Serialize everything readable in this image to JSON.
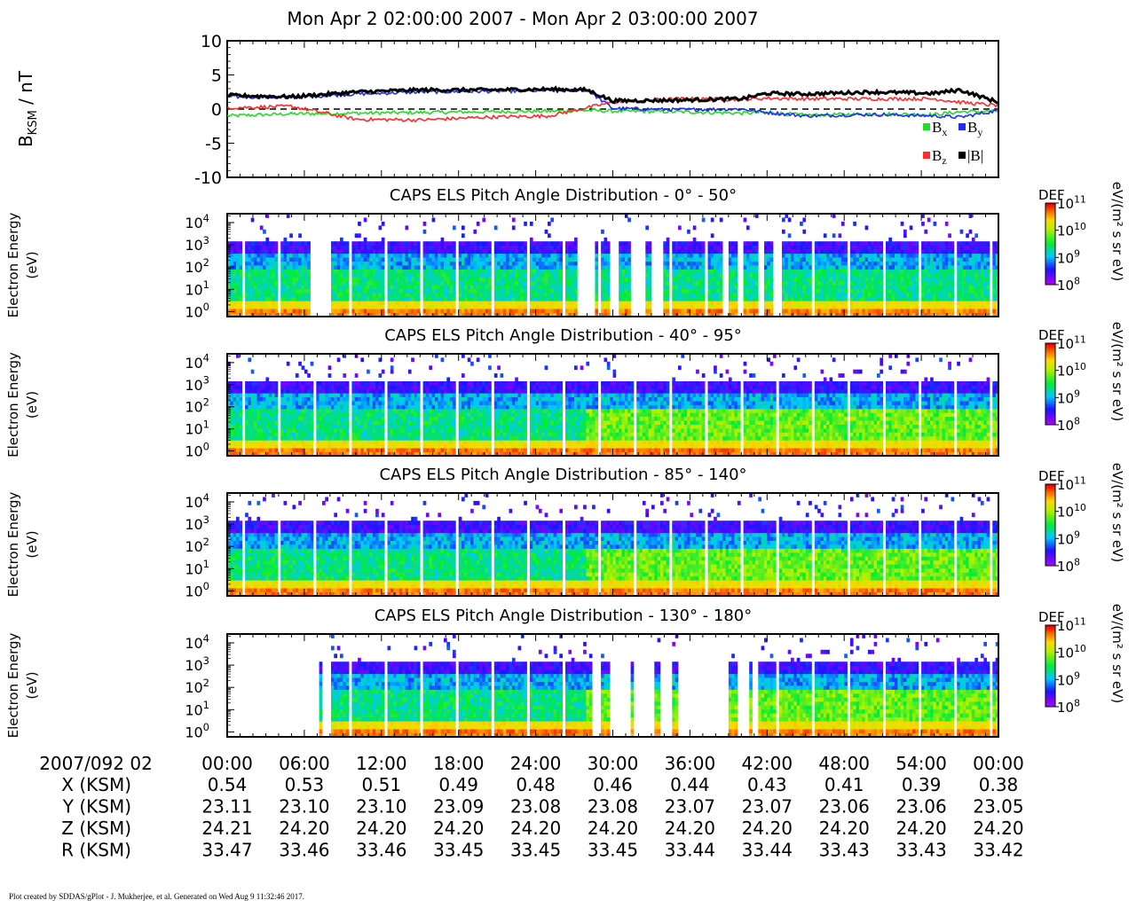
{
  "page": {
    "title": "Mon Apr 2 02:00:00 2007 - Mon Apr 2 03:00:00 2007",
    "footer": "Plot created by SDDAS/gPlot - J. Mukherjee, et al.  Generated on Wed Aug 9 11:32:46 2017."
  },
  "chart_data": [
    {
      "type": "line",
      "ylabel_main": "B",
      "ylabel_sub": "KSM",
      "ylabel_unit": " / nT",
      "ylim": [
        -10,
        10
      ],
      "yticks": [
        "10",
        "5",
        "0",
        "-5",
        "-10"
      ],
      "ytick_values": [
        10,
        5,
        0,
        -5,
        -10
      ],
      "x": [
        0,
        5,
        10,
        15,
        20,
        25,
        28,
        30,
        35,
        40,
        42,
        45,
        50,
        55,
        57,
        60
      ],
      "zero_line": "dashed",
      "legend_position": "bottom-right",
      "series": [
        {
          "name": "B",
          "sub": "x",
          "color": "#22dd22",
          "values": [
            -1.0,
            -0.7,
            -0.6,
            -0.5,
            -0.4,
            -0.3,
            -0.2,
            -0.3,
            -0.4,
            -0.6,
            -0.5,
            -0.9,
            -0.7,
            -0.8,
            -0.4,
            -0.3
          ]
        },
        {
          "name": "B",
          "sub": "y",
          "color": "#1f2cff",
          "values": [
            1.8,
            1.7,
            2.2,
            2.5,
            2.6,
            2.7,
            2.8,
            0.1,
            -0.1,
            0.0,
            -0.5,
            -1.0,
            -0.8,
            -1.0,
            -1.2,
            -0.2
          ]
        },
        {
          "name": "B",
          "sub": "z",
          "color": "#ff2a2a",
          "values": [
            0.2,
            0.4,
            -1.5,
            -1.6,
            -1.2,
            -1.0,
            0.2,
            1.0,
            1.5,
            1.4,
            1.6,
            1.5,
            1.5,
            1.5,
            1.0,
            0.5
          ]
        },
        {
          "name": "|B|",
          "sub": "",
          "color": "#000000",
          "values": [
            2.0,
            1.8,
            2.5,
            2.8,
            2.8,
            2.9,
            2.8,
            1.2,
            1.3,
            1.5,
            2.3,
            2.2,
            2.5,
            2.3,
            2.8,
            1.0
          ]
        }
      ]
    },
    {
      "type": "heatmap",
      "title": "CAPS ELS Pitch Angle Distribution - 0° - 50°",
      "ylabel": [
        "Electron Energy",
        "(eV)"
      ],
      "yscale": "log",
      "ylim": [
        0.6,
        25000
      ],
      "yticks_exp": [
        "0",
        "1",
        "2",
        "3",
        "4"
      ],
      "ytick_base": "10",
      "colorscale": "rainbow",
      "colorbar_label": "DEF",
      "colorbar_unit": "eV/(m² s sr eV)",
      "clim_exp": [
        "8",
        "9",
        "10",
        "11"
      ],
      "data_gaps_minutes": [
        [
          6.4,
          8.0
        ],
        [
          27.3,
          28.6
        ],
        [
          29.8,
          30.5
        ],
        [
          31.3,
          32.5
        ],
        [
          32.9,
          34.0
        ],
        [
          38.5,
          39.0
        ],
        [
          39.6,
          40.2
        ],
        [
          41.4,
          41.7
        ],
        [
          42.5,
          43.2
        ]
      ]
    },
    {
      "type": "heatmap",
      "title": "CAPS ELS Pitch Angle Distribution - 40° - 95°",
      "ylabel": [
        "Electron Energy",
        "(eV)"
      ],
      "yscale": "log",
      "ylim": [
        0.6,
        25000
      ],
      "yticks_exp": [
        "0",
        "1",
        "2",
        "3",
        "4"
      ],
      "ytick_base": "10",
      "colorscale": "rainbow",
      "colorbar_label": "DEF",
      "colorbar_unit": "eV/(m² s sr eV)",
      "clim_exp": [
        "8",
        "9",
        "10",
        "11"
      ],
      "data_gaps_minutes": []
    },
    {
      "type": "heatmap",
      "title": "CAPS ELS Pitch Angle Distribution - 85° - 140°",
      "ylabel": [
        "Electron Energy",
        "(eV)"
      ],
      "yscale": "log",
      "ylim": [
        0.6,
        25000
      ],
      "yticks_exp": [
        "0",
        "1",
        "2",
        "3",
        "4"
      ],
      "ytick_base": "10",
      "colorscale": "rainbow",
      "colorbar_label": "DEF",
      "colorbar_unit": "eV/(m² s sr eV)",
      "clim_exp": [
        "8",
        "9",
        "10",
        "11"
      ],
      "data_gaps_minutes": []
    },
    {
      "type": "heatmap",
      "title": "CAPS ELS Pitch Angle Distribution - 130° - 180°",
      "ylabel": [
        "Electron Energy",
        "(eV)"
      ],
      "yscale": "log",
      "ylim": [
        0.6,
        25000
      ],
      "yticks_exp": [
        "0",
        "1",
        "2",
        "3",
        "4"
      ],
      "ytick_base": "10",
      "colorscale": "rainbow",
      "colorbar_label": "DEF",
      "colorbar_unit": "eV/(m² s sr eV)",
      "clim_exp": [
        "8",
        "9",
        "10",
        "11"
      ],
      "data_gaps_minutes": [
        [
          0,
          7.2
        ],
        [
          7.4,
          8.0
        ],
        [
          28.5,
          29.0
        ],
        [
          29.8,
          31.3
        ],
        [
          31.6,
          33.2
        ],
        [
          33.8,
          34.4
        ],
        [
          35.0,
          39.0
        ],
        [
          39.7,
          40.5
        ],
        [
          40.8,
          41.2
        ]
      ]
    }
  ],
  "time_axis": {
    "xlim_minutes": [
      0,
      60
    ],
    "tick_minutes": [
      0,
      6,
      12,
      18,
      24,
      30,
      36,
      42,
      48,
      54,
      60
    ],
    "labels": [
      "00:00",
      "06:00",
      "12:00",
      "18:00",
      "24:00",
      "30:00",
      "36:00",
      "42:00",
      "48:00",
      "54:00",
      "00:00"
    ],
    "date_label": "2007/092 02"
  },
  "ephemeris": [
    {
      "label": "X (KSM)",
      "values": [
        "0.54",
        "0.53",
        "0.51",
        "0.49",
        "0.48",
        "0.46",
        "0.44",
        "0.43",
        "0.41",
        "0.39",
        "0.38"
      ]
    },
    {
      "label": "Y (KSM)",
      "values": [
        "23.11",
        "23.10",
        "23.10",
        "23.09",
        "23.08",
        "23.08",
        "23.07",
        "23.07",
        "23.06",
        "23.06",
        "23.05"
      ]
    },
    {
      "label": "Z (KSM)",
      "values": [
        "24.21",
        "24.20",
        "24.20",
        "24.20",
        "24.20",
        "24.20",
        "24.20",
        "24.20",
        "24.20",
        "24.20",
        "24.20"
      ]
    },
    {
      "label": "R (KSM)",
      "values": [
        "33.47",
        "33.46",
        "33.46",
        "33.45",
        "33.45",
        "33.45",
        "33.44",
        "33.44",
        "33.43",
        "33.43",
        "33.42"
      ]
    }
  ]
}
